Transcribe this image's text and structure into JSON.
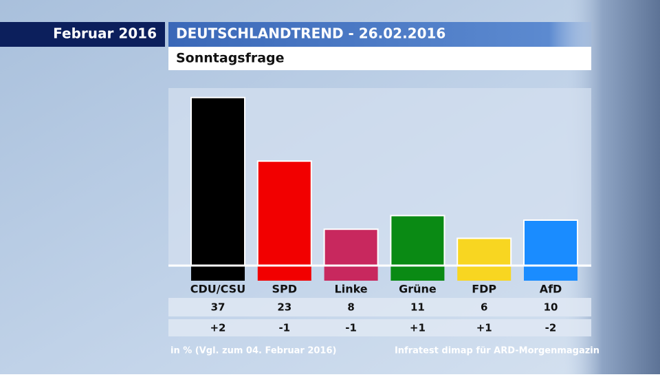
{
  "chart_data": {
    "type": "bar",
    "date_label": "Februar 2016",
    "title": "DEUTSCHLANDTREND - 26.02.2016",
    "subtitle": "Sonntagsfrage",
    "categories": [
      "CDU/CSU",
      "SPD",
      "Linke",
      "Grüne",
      "FDP",
      "AfD"
    ],
    "values": [
      37,
      23,
      8,
      11,
      6,
      10
    ],
    "colors": [
      "#000000",
      "#f20000",
      "#c8285e",
      "#0a8a14",
      "#f8d621",
      "#1a8cff"
    ],
    "changes": [
      "+2",
      "-1",
      "-1",
      "+1",
      "+1",
      "-2"
    ],
    "footnote": "in % (Vgl. zum 04. Februar 2016)",
    "source": "Infratest dimap für ARD-Morgenmagazin"
  }
}
